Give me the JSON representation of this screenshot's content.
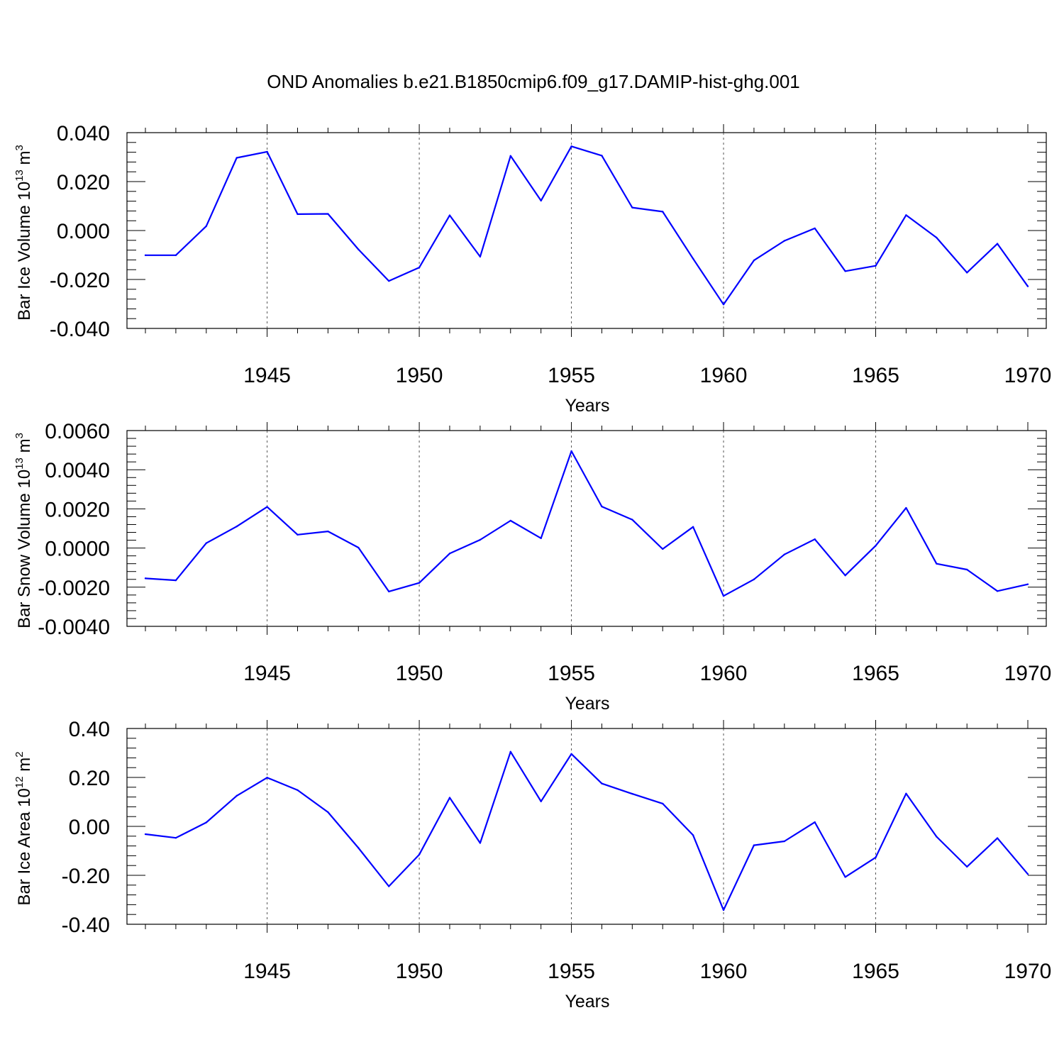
{
  "title": "OND Anomalies b.e21.B1850cmip6.f09_g17.DAMIP-hist-ghg.001",
  "line_color": "#0000ff",
  "chart_data": [
    {
      "type": "line",
      "id": "ice-volume",
      "ylabel": {
        "text": "Bar Ice Volume 10",
        "sup": "13",
        "unit": " m",
        "unit_sup": "3"
      },
      "xlabel": "Years",
      "xlim": [
        1941,
        1970
      ],
      "ylim": [
        -0.04,
        0.04
      ],
      "yticks": [
        -0.04,
        -0.02,
        0.0,
        0.02,
        0.04
      ],
      "ytick_labels": [
        "-0.040",
        "-0.020",
        "0.000",
        "0.020",
        "0.040"
      ],
      "xticks": [
        1945,
        1950,
        1955,
        1960,
        1965,
        1970
      ],
      "xtick_labels": [
        "1945",
        "1950",
        "1955",
        "1960",
        "1965",
        "1970"
      ],
      "grid": "vertical dashed at major x ticks",
      "x": [
        1941,
        1942,
        1943,
        1944,
        1945,
        1946,
        1947,
        1948,
        1949,
        1950,
        1951,
        1952,
        1953,
        1954,
        1955,
        1956,
        1957,
        1958,
        1959,
        1960,
        1961,
        1962,
        1963,
        1964,
        1965,
        1966,
        1967,
        1968,
        1969,
        1970
      ],
      "y": [
        -0.0101,
        -0.0101,
        0.0018,
        0.0297,
        0.0322,
        0.0067,
        0.0068,
        -0.0077,
        -0.0206,
        -0.0151,
        0.0062,
        -0.0107,
        0.0305,
        0.0122,
        0.0344,
        0.0306,
        0.0094,
        0.0077,
        -0.0115,
        -0.0302,
        -0.0122,
        -0.0042,
        0.0009,
        -0.0166,
        -0.0144,
        0.0063,
        -0.0029,
        -0.0172,
        -0.0054,
        -0.0228
      ]
    },
    {
      "type": "line",
      "id": "snow-volume",
      "ylabel": {
        "text": "Bar Snow Volume 10",
        "sup": "13",
        "unit": " m",
        "unit_sup": "3"
      },
      "xlabel": "Years",
      "xlim": [
        1941,
        1970
      ],
      "ylim": [
        -0.004,
        0.006
      ],
      "yticks": [
        -0.004,
        -0.002,
        0.0,
        0.002,
        0.004,
        0.006
      ],
      "ytick_labels": [
        "-0.0040",
        "-0.0020",
        "0.0000",
        "0.0020",
        "0.0040",
        "0.0060"
      ],
      "xticks": [
        1945,
        1950,
        1955,
        1960,
        1965,
        1970
      ],
      "xtick_labels": [
        "1945",
        "1950",
        "1955",
        "1960",
        "1965",
        "1970"
      ],
      "grid": "vertical dashed at major x ticks",
      "x": [
        1941,
        1942,
        1943,
        1944,
        1945,
        1946,
        1947,
        1948,
        1949,
        1950,
        1951,
        1952,
        1953,
        1954,
        1955,
        1956,
        1957,
        1958,
        1959,
        1960,
        1961,
        1962,
        1963,
        1964,
        1965,
        1966,
        1967,
        1968,
        1969,
        1970
      ],
      "y": [
        -0.00155,
        -0.00165,
        0.00025,
        0.0011,
        0.0021,
        0.00068,
        0.00085,
        2e-05,
        -0.00222,
        -0.00178,
        -0.00028,
        0.00042,
        0.0014,
        0.0005,
        0.00495,
        0.00212,
        0.00145,
        -5e-05,
        0.00108,
        -0.00245,
        -0.0016,
        -0.00033,
        0.00045,
        -0.0014,
        0.00012,
        0.00205,
        -0.0008,
        -0.0011,
        -0.0022,
        -0.00185
      ]
    },
    {
      "type": "line",
      "id": "ice-area",
      "ylabel": {
        "text": "Bar Ice Area 10",
        "sup": "12",
        "unit": " m",
        "unit_sup": "2"
      },
      "xlabel": "Years",
      "xlim": [
        1941,
        1970
      ],
      "ylim": [
        -0.4,
        0.4
      ],
      "yticks": [
        -0.4,
        -0.2,
        0.0,
        0.2,
        0.4
      ],
      "ytick_labels": [
        "-0.40",
        "-0.20",
        "0.00",
        "0.20",
        "0.40"
      ],
      "xticks": [
        1945,
        1950,
        1955,
        1960,
        1965,
        1970
      ],
      "xtick_labels": [
        "1945",
        "1950",
        "1955",
        "1960",
        "1965",
        "1970"
      ],
      "grid": "vertical dashed at major x ticks",
      "x": [
        1941,
        1942,
        1943,
        1944,
        1945,
        1946,
        1947,
        1948,
        1949,
        1950,
        1951,
        1952,
        1953,
        1954,
        1955,
        1956,
        1957,
        1958,
        1959,
        1960,
        1961,
        1962,
        1963,
        1964,
        1965,
        1966,
        1967,
        1968,
        1969,
        1970
      ],
      "y": [
        -0.032,
        -0.047,
        0.016,
        0.125,
        0.199,
        0.148,
        0.058,
        -0.088,
        -0.245,
        -0.115,
        0.117,
        -0.068,
        0.305,
        0.102,
        0.296,
        0.175,
        0.133,
        0.093,
        -0.036,
        -0.342,
        -0.077,
        -0.061,
        0.017,
        -0.207,
        -0.127,
        0.134,
        -0.042,
        -0.165,
        -0.048,
        -0.195
      ]
    }
  ]
}
